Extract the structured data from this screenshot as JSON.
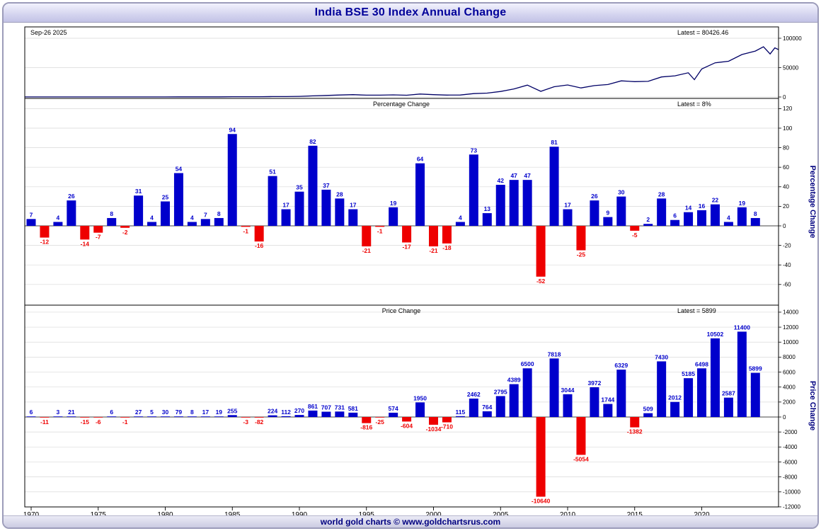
{
  "title": "India BSE 30 Index Annual Change",
  "top_left_date": "Sep-26  2025",
  "footer_credit": "world gold charts © www.goldchartsrus.com",
  "colors": {
    "positive": "#0000cc",
    "negative": "#ee0000",
    "line": "#000066",
    "grid": "#d9d9d9",
    "zero_line": "#444444",
    "accent_text": "#000080"
  },
  "panels": {
    "index": {
      "latest": "Latest = 80426.46"
    },
    "percent": {
      "heading": "Percentage Change",
      "latest": "Latest = 8%",
      "ylabel": "Percentage Change"
    },
    "price": {
      "heading": "Price Change",
      "latest": "Latest = 5899",
      "ylabel": "Price Change"
    }
  },
  "x_axis": {
    "ticks": [
      1970,
      1975,
      1980,
      1985,
      1990,
      1995,
      2000,
      2005,
      2010,
      2015,
      2020
    ]
  },
  "chart_data": [
    {
      "type": "line",
      "name": "India BSE 30 Index level",
      "latest_value": 80426.46,
      "latest_date": "Sep-26 2025",
      "ylim": [
        0,
        119000
      ],
      "yticks": [
        0,
        50000,
        100000
      ],
      "points": [
        [
          1969,
          82
        ],
        [
          1970,
          88
        ],
        [
          1971,
          77
        ],
        [
          1972,
          80
        ],
        [
          1973,
          101
        ],
        [
          1974,
          86
        ],
        [
          1975,
          80
        ],
        [
          1976,
          86
        ],
        [
          1977,
          85
        ],
        [
          1978,
          112
        ],
        [
          1979,
          117
        ],
        [
          1980,
          147
        ],
        [
          1981,
          226
        ],
        [
          1982,
          234
        ],
        [
          1983,
          251
        ],
        [
          1984,
          270
        ],
        [
          1985,
          525
        ],
        [
          1986,
          522
        ],
        [
          1987,
          440
        ],
        [
          1988,
          664
        ],
        [
          1989,
          776
        ],
        [
          1990,
          1046
        ],
        [
          1991,
          1907
        ],
        [
          1992,
          2614
        ],
        [
          1993,
          3345
        ],
        [
          1994,
          3926
        ],
        [
          1995,
          3110
        ],
        [
          1996,
          3085
        ],
        [
          1997,
          3659
        ],
        [
          1998,
          3055
        ],
        [
          1999,
          5005
        ],
        [
          2000,
          3971
        ],
        [
          2001,
          3261
        ],
        [
          2002,
          3376
        ],
        [
          2003,
          5838
        ],
        [
          2004,
          6602
        ],
        [
          2005,
          9397
        ],
        [
          2006,
          13786
        ],
        [
          2007,
          20286
        ],
        [
          2008,
          9646
        ],
        [
          2009,
          17464
        ],
        [
          2010,
          20508
        ],
        [
          2011,
          15454
        ],
        [
          2012,
          19426
        ],
        [
          2013,
          21170
        ],
        [
          2014,
          27499
        ],
        [
          2015,
          26117
        ],
        [
          2016,
          26626
        ],
        [
          2017,
          34056
        ],
        [
          2018,
          36068
        ],
        [
          2019,
          41253
        ],
        [
          2019.45,
          29468
        ],
        [
          2020,
          47751
        ],
        [
          2021,
          58253
        ],
        [
          2022,
          60840
        ],
        [
          2023,
          72240
        ],
        [
          2024,
          78139
        ],
        [
          2024.6,
          85571
        ],
        [
          2025.1,
          73198
        ],
        [
          2025.45,
          83600
        ],
        [
          2025.74,
          80426.46
        ]
      ]
    },
    {
      "type": "bar",
      "name": "Percentage Change",
      "latest": 8,
      "ylim": [
        -81,
        130
      ],
      "yticks": [
        -60,
        -40,
        -20,
        0,
        20,
        40,
        60,
        80,
        100,
        120
      ],
      "years": [
        1970,
        1971,
        1972,
        1973,
        1974,
        1975,
        1976,
        1977,
        1978,
        1979,
        1980,
        1981,
        1982,
        1983,
        1984,
        1985,
        1986,
        1987,
        1988,
        1989,
        1990,
        1991,
        1992,
        1993,
        1994,
        1995,
        1996,
        1997,
        1998,
        1999,
        2000,
        2001,
        2002,
        2003,
        2004,
        2005,
        2006,
        2007,
        2008,
        2009,
        2010,
        2011,
        2012,
        2013,
        2014,
        2015,
        2016,
        2017,
        2018,
        2019,
        2020,
        2021,
        2022,
        2023,
        2024
      ],
      "values": [
        7,
        -12,
        4,
        26,
        -14,
        -7,
        8,
        -2,
        31,
        4,
        25,
        54,
        4,
        7,
        8,
        94,
        -1,
        -16,
        51,
        17,
        35,
        82,
        37,
        28,
        17,
        -21,
        -1,
        19,
        -17,
        64,
        -21,
        -18,
        4,
        73,
        13,
        42,
        47,
        47,
        -52,
        81,
        17,
        -25,
        26,
        9,
        30,
        -5,
        2,
        28,
        6,
        14,
        16,
        22,
        4,
        19,
        8
      ]
    },
    {
      "type": "bar",
      "name": "Price Change",
      "latest": 5899,
      "ylim": [
        -12010,
        15130
      ],
      "yticks": [
        -12000,
        -10000,
        -8000,
        -6000,
        -4000,
        -2000,
        0,
        2000,
        4000,
        6000,
        8000,
        10000,
        12000,
        14000
      ],
      "years": [
        1970,
        1971,
        1972,
        1973,
        1974,
        1975,
        1976,
        1977,
        1978,
        1979,
        1980,
        1981,
        1982,
        1983,
        1984,
        1985,
        1986,
        1987,
        1988,
        1989,
        1990,
        1991,
        1992,
        1993,
        1994,
        1995,
        1996,
        1997,
        1998,
        1999,
        2000,
        2001,
        2002,
        2003,
        2004,
        2005,
        2006,
        2007,
        2008,
        2009,
        2010,
        2011,
        2012,
        2013,
        2014,
        2015,
        2016,
        2017,
        2018,
        2019,
        2020,
        2021,
        2022,
        2023,
        2024
      ],
      "values": [
        6,
        -11,
        3,
        21,
        -15,
        -6,
        6,
        -1,
        27,
        5,
        30,
        79,
        8,
        17,
        19,
        255,
        -3,
        -82,
        224,
        112,
        270,
        861,
        707,
        731,
        581,
        -816,
        -25,
        574,
        -604,
        1950,
        -1034,
        -710,
        115,
        2462,
        764,
        2795,
        4389,
        6500,
        -10640,
        7818,
        3044,
        -5054,
        3972,
        1744,
        6329,
        -1382,
        509,
        7430,
        2012,
        5185,
        6498,
        10502,
        2587,
        11400,
        5899
      ]
    }
  ]
}
